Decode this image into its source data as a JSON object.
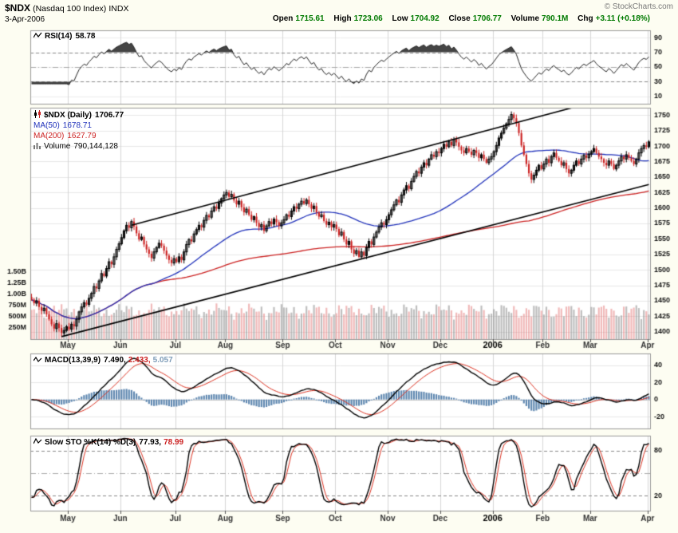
{
  "header": {
    "symbol": "$NDX",
    "name": "(Nasdaq 100 Index)",
    "exchange": "INDX",
    "date": "3-Apr-2006",
    "copyright": "© StockCharts.com",
    "quote": {
      "open_label": "Open",
      "open": "1715.61",
      "high_label": "High",
      "high": "1723.06",
      "low_label": "Low",
      "low": "1704.92",
      "close_label": "Close",
      "close": "1706.77",
      "volume_label": "Volume",
      "volume": "790.1M",
      "chg_label": "Chg",
      "chg": "+3.11 (+0.18%)"
    }
  },
  "panels": {
    "rsi": {
      "label": "RSI(14)",
      "value": "58.78",
      "ticks": [
        90,
        70,
        50,
        30,
        10
      ],
      "dashed_guides": [
        70,
        30
      ],
      "dashdot_guides": [
        50
      ]
    },
    "price": {
      "legend": {
        "title": "$NDX (Daily)",
        "value": "1706.77",
        "ma50_label": "MA(50)",
        "ma50_value": "1678.71",
        "ma200_label": "MA(200)",
        "ma200_value": "1627.79",
        "volume_label": "Volume",
        "volume_value": "790,144,128"
      },
      "ticks": [
        1750,
        1725,
        1700,
        1675,
        1650,
        1625,
        1600,
        1575,
        1550,
        1525,
        1500,
        1475,
        1450,
        1425,
        1400
      ],
      "volume_ticks": [
        [
          "1.50B",
          1500000000
        ],
        [
          "1.25B",
          1250000000
        ],
        [
          "1.00B",
          1000000000
        ],
        [
          "750M",
          750000000
        ],
        [
          "500M",
          500000000
        ],
        [
          "250M",
          250000000
        ]
      ]
    },
    "macd": {
      "label": "MACD(13,39,9)",
      "values": [
        "7.490,",
        "2.433,",
        "5.057"
      ],
      "ticks": [
        40,
        20,
        0,
        -20
      ]
    },
    "sto": {
      "label": "Slow STO %K(14) %D(3)",
      "values": [
        "77.93,",
        "78.99"
      ],
      "ticks": [
        80,
        50,
        20
      ],
      "labeled_ticks": [
        80,
        20
      ],
      "dashed_guides": [
        80,
        20
      ],
      "dashdot_guides": [
        50
      ]
    }
  },
  "x_axis": {
    "months": [
      [
        "May",
        15
      ],
      [
        "Jun",
        36
      ],
      [
        "Jul",
        58
      ],
      [
        "Aug",
        78
      ],
      [
        "Sep",
        101
      ],
      [
        "Oct",
        122
      ],
      [
        "Nov",
        143
      ],
      [
        "Dec",
        164
      ],
      [
        "2006",
        185,
        true
      ],
      [
        "Feb",
        205
      ],
      [
        "Mar",
        224
      ],
      [
        "Apr",
        247
      ]
    ]
  },
  "colors": {
    "up": "#000000",
    "down": "#cc2222",
    "ma50": "#2233bb",
    "ma200": "#cc2222",
    "vol_up": "rgba(125,125,125,0.50)",
    "vol_down": "rgba(225,100,100,0.45)",
    "macd_hist": "#5e87b0",
    "macd_line": "#000000",
    "macd_signal": "#dd3322",
    "sto_k": "#000000",
    "sto_d": "#dd3322",
    "channel": "#000000",
    "quote_value": "#007a00"
  },
  "chart_data": {
    "type": "candlestick",
    "title": "$NDX Nasdaq 100 Index — Daily",
    "x_range": "Apr 2005 - Apr 2006",
    "ylim": [
      1400,
      1750
    ],
    "sub_panels": [
      "RSI(14)",
      "Volume",
      "MACD(13,39,9)",
      "Slow Stochastic %K(14) %D(3)"
    ],
    "indicator_params": {
      "rsi_period": 14,
      "ma_periods": [
        50,
        200
      ],
      "macd": [
        13,
        39,
        9
      ],
      "stochastic": [
        14,
        3
      ]
    },
    "volume_scale": {
      "axis_max": 1500000000,
      "typical_range": [
        300000000,
        900000000
      ]
    },
    "channel": {
      "lower": [
        [
          12,
          1392
        ],
        [
          247,
          1638
        ]
      ],
      "upper": [
        [
          40,
          1572
        ],
        [
          247,
          1795
        ]
      ]
    },
    "closes": [
      1452,
      1446,
      1450,
      1440,
      1434,
      1438,
      1428,
      1420,
      1412,
      1405,
      1413,
      1406,
      1398,
      1402,
      1408,
      1404,
      1412,
      1409,
      1420,
      1432,
      1440,
      1447,
      1444,
      1454,
      1462,
      1473,
      1470,
      1482,
      1494,
      1490,
      1502,
      1513,
      1509,
      1521,
      1533,
      1542,
      1552,
      1563,
      1572,
      1568,
      1578,
      1570,
      1559,
      1549,
      1553,
      1541,
      1533,
      1526,
      1519,
      1529,
      1536,
      1543,
      1539,
      1531,
      1523,
      1516,
      1511,
      1518,
      1513,
      1521,
      1516,
      1529,
      1541,
      1549,
      1546,
      1558,
      1565,
      1572,
      1569,
      1580,
      1588,
      1585,
      1595,
      1602,
      1599,
      1608,
      1615,
      1621,
      1625,
      1618,
      1622,
      1612,
      1606,
      1611,
      1601,
      1593,
      1598,
      1589,
      1581,
      1586,
      1576,
      1569,
      1573,
      1563,
      1571,
      1578,
      1574,
      1582,
      1577,
      1571,
      1576,
      1581,
      1589,
      1586,
      1595,
      1602,
      1599,
      1606,
      1611,
      1607,
      1613,
      1606,
      1599,
      1603,
      1593,
      1586,
      1589,
      1579,
      1573,
      1577,
      1569,
      1573,
      1566,
      1556,
      1561,
      1549,
      1541,
      1546,
      1533,
      1526,
      1531,
      1521,
      1529,
      1523,
      1536,
      1546,
      1541,
      1553,
      1561,
      1569,
      1576,
      1573,
      1581,
      1589,
      1597,
      1605,
      1613,
      1609,
      1621,
      1629,
      1636,
      1631,
      1643,
      1651,
      1659,
      1656,
      1666,
      1673,
      1669,
      1679,
      1686,
      1683,
      1691,
      1689,
      1696,
      1703,
      1699,
      1707,
      1701,
      1711,
      1706,
      1699,
      1693,
      1689,
      1696,
      1691,
      1686,
      1693,
      1689,
      1681,
      1686,
      1679,
      1673,
      1679,
      1683,
      1691,
      1701,
      1713,
      1721,
      1729,
      1736,
      1743,
      1751,
      1745,
      1737,
      1721,
      1701,
      1686,
      1671,
      1656,
      1646,
      1653,
      1661,
      1669,
      1663,
      1671,
      1679,
      1673,
      1683,
      1689,
      1681,
      1676,
      1669,
      1673,
      1663,
      1656,
      1661,
      1669,
      1676,
      1671,
      1679,
      1685,
      1681,
      1687,
      1691,
      1696,
      1689,
      1683,
      1679,
      1673,
      1669,
      1676,
      1671,
      1663,
      1669,
      1676,
      1683,
      1679,
      1686,
      1681,
      1676,
      1671,
      1679,
      1689,
      1696,
      1701,
      1699,
      1706.77
    ]
  }
}
